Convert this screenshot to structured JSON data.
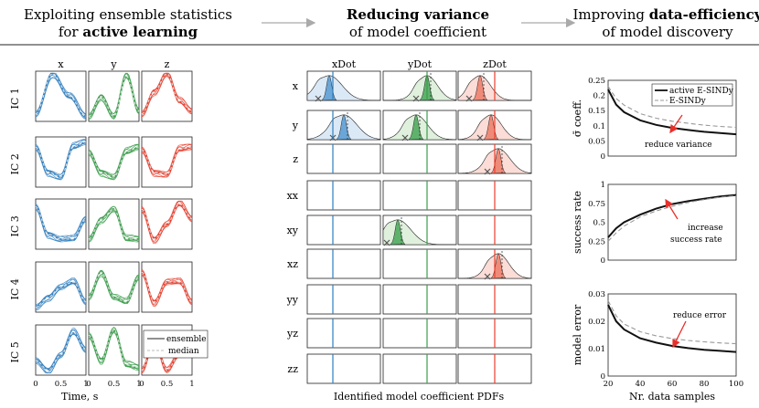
{
  "header": {
    "left_line1": "Exploiting ensemble statistics",
    "left_line2_pre": "for ",
    "left_line2_bold": "active learning",
    "mid_line1_bold": "Reducing variance",
    "mid_line2": "of model coefficient",
    "right_line1_pre": "Improving ",
    "right_line1_bold": "data-efficiency",
    "right_line2": "of model discovery"
  },
  "ensemble_panel": {
    "columns": [
      "x",
      "y",
      "z"
    ],
    "rows": [
      "IC 1",
      "IC 2",
      "IC 3",
      "IC 4",
      "IC 5"
    ],
    "xlabel": "Time, s",
    "xticks": [
      "0",
      "0.5",
      "1"
    ],
    "legend": [
      "ensemble",
      "median"
    ],
    "colors": {
      "x": "#2f7fbf",
      "y": "#3a9e4a",
      "z": "#e8402e"
    }
  },
  "pdf_panel": {
    "columns": [
      "xDot",
      "yDot",
      "zDot"
    ],
    "rows": [
      "x",
      "y",
      "z",
      "xx",
      "xy",
      "xz",
      "yy",
      "yz",
      "zz"
    ],
    "caption": "Identified model coefficient PDFs"
  },
  "chart_data": [
    {
      "type": "line",
      "title": "",
      "ylabel": "σ̄ coeff.",
      "xlabel": "",
      "xlim": [
        20,
        100
      ],
      "ylim": [
        0,
        0.25
      ],
      "yticks": [
        "0",
        "0.05",
        "0.1",
        "0.15",
        "0.2",
        "0.25"
      ],
      "annotation": "reduce variance",
      "series": [
        {
          "name": "active E-SINDy",
          "x": [
            20,
            25,
            30,
            40,
            50,
            60,
            70,
            80,
            90,
            100
          ],
          "values": [
            0.22,
            0.17,
            0.145,
            0.118,
            0.103,
            0.093,
            0.086,
            0.08,
            0.076,
            0.072
          ]
        },
        {
          "name": "E-SINDy",
          "x": [
            20,
            25,
            30,
            40,
            50,
            60,
            70,
            80,
            90,
            100
          ],
          "values": [
            0.23,
            0.19,
            0.168,
            0.14,
            0.125,
            0.115,
            0.108,
            0.102,
            0.098,
            0.095
          ]
        }
      ]
    },
    {
      "type": "line",
      "ylabel": "success rate",
      "xlim": [
        20,
        100
      ],
      "ylim": [
        0,
        1
      ],
      "yticks": [
        "0",
        "0.25",
        "0.5",
        "0.75",
        "1"
      ],
      "annotation_line1": "increase",
      "annotation_line2": "success rate",
      "series": [
        {
          "name": "active E-SINDy",
          "x": [
            20,
            25,
            30,
            40,
            50,
            60,
            70,
            80,
            90,
            100
          ],
          "values": [
            0.3,
            0.42,
            0.5,
            0.6,
            0.68,
            0.74,
            0.78,
            0.81,
            0.84,
            0.86
          ]
        },
        {
          "name": "E-SINDy",
          "x": [
            20,
            25,
            30,
            40,
            50,
            60,
            70,
            80,
            90,
            100
          ],
          "values": [
            0.25,
            0.36,
            0.45,
            0.57,
            0.65,
            0.71,
            0.76,
            0.8,
            0.83,
            0.85
          ]
        }
      ]
    },
    {
      "type": "line",
      "ylabel": "model error",
      "xlabel": "Nr. data samples",
      "xlim": [
        20,
        100
      ],
      "ylim": [
        0,
        0.03
      ],
      "yticks": [
        "0",
        "0.01",
        "0.02",
        "0.03"
      ],
      "xticks": [
        "20",
        "40",
        "60",
        "80",
        "100"
      ],
      "annotation": "reduce error",
      "series": [
        {
          "name": "active E-SINDy",
          "x": [
            20,
            25,
            30,
            40,
            50,
            60,
            70,
            80,
            90,
            100
          ],
          "values": [
            0.026,
            0.02,
            0.017,
            0.0138,
            0.0122,
            0.011,
            0.0102,
            0.0096,
            0.0092,
            0.0088
          ]
        },
        {
          "name": "E-SINDy",
          "x": [
            20,
            25,
            30,
            40,
            50,
            60,
            70,
            80,
            90,
            100
          ],
          "values": [
            0.0275,
            0.022,
            0.019,
            0.0162,
            0.0147,
            0.0137,
            0.013,
            0.0125,
            0.0121,
            0.0118
          ]
        }
      ]
    }
  ]
}
